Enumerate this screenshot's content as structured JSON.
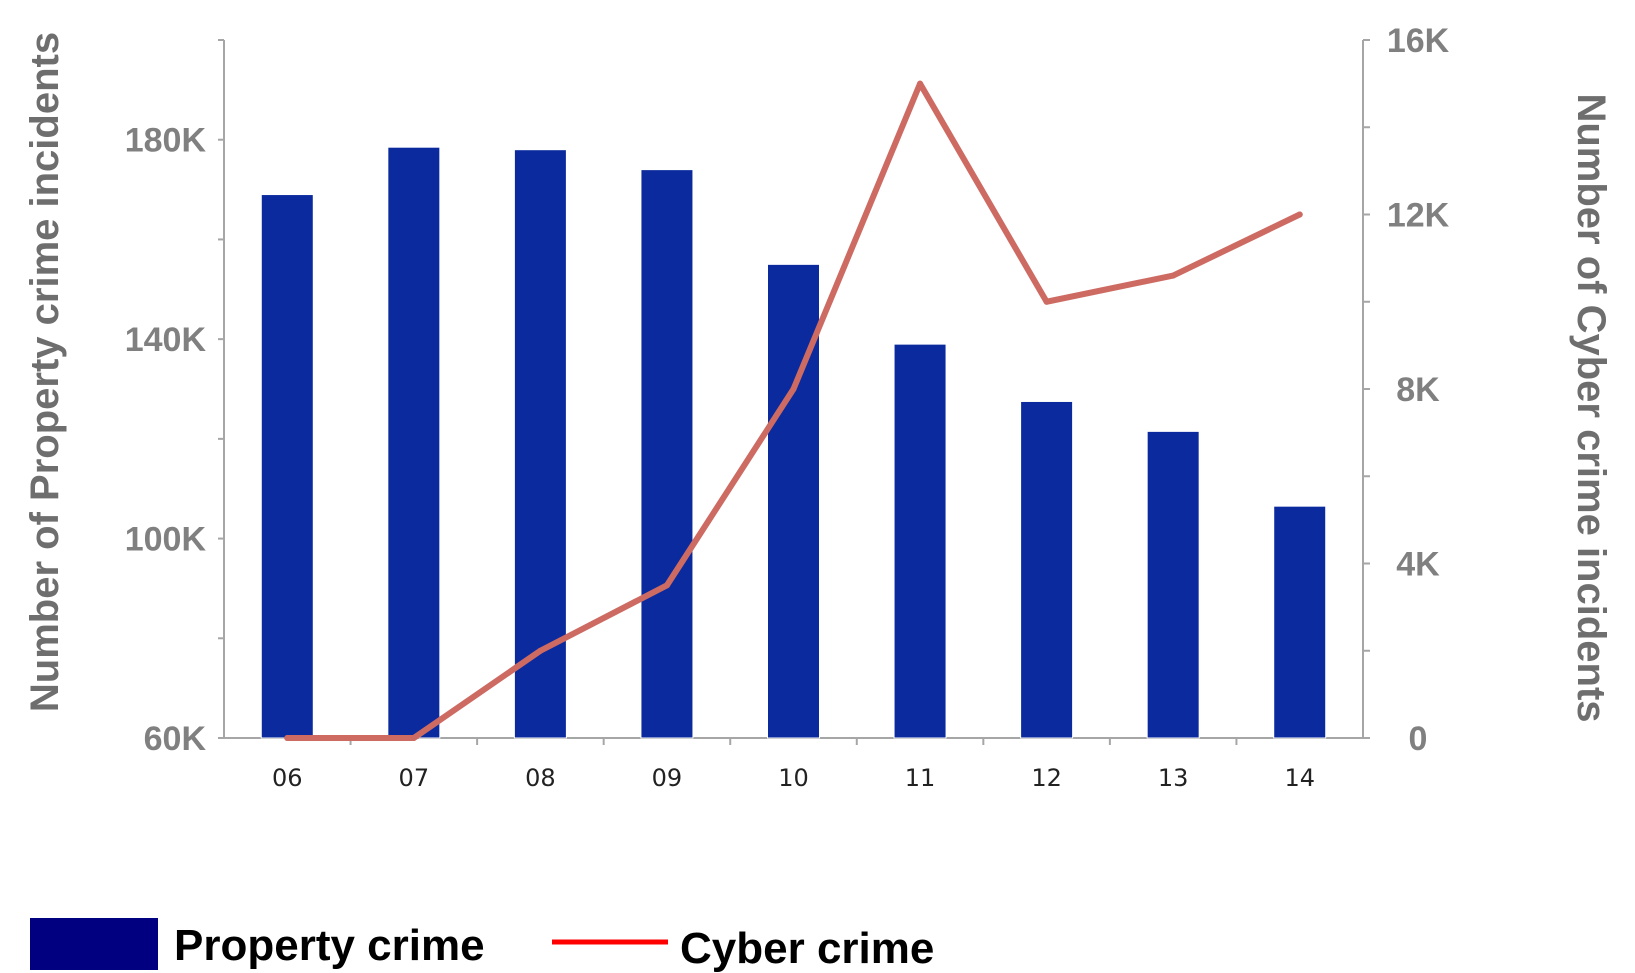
{
  "chart_data": {
    "type": "bar",
    "categories": [
      "06",
      "07",
      "08",
      "09",
      "10",
      "11",
      "12",
      "13",
      "14"
    ],
    "series": [
      {
        "name": "Property crime",
        "type": "bar",
        "axis": "left",
        "color": "#0a2a9e",
        "values": [
          169000,
          178500,
          178000,
          174000,
          155000,
          139000,
          127500,
          121500,
          106500
        ]
      },
      {
        "name": "Cyber crime",
        "type": "line",
        "axis": "right",
        "color": "#cd6b63",
        "values": [
          0,
          0,
          2000,
          3500,
          8000,
          15000,
          10000,
          10600,
          12000
        ]
      }
    ],
    "ylabel": "Number of Property crime incidents",
    "y2label": "Number of Cyber crime incidents",
    "ylim": [
      60000,
      200000
    ],
    "y2lim": [
      0,
      16000
    ],
    "yticks": [
      {
        "value": 60000,
        "label": "60K"
      },
      {
        "value": 100000,
        "label": "100K"
      },
      {
        "value": 140000,
        "label": "140K"
      },
      {
        "value": 180000,
        "label": "180K"
      }
    ],
    "y2ticks": [
      {
        "value": 0,
        "label": "0"
      },
      {
        "value": 4000,
        "label": "4K"
      },
      {
        "value": 8000,
        "label": "8K"
      },
      {
        "value": 12000,
        "label": "12K"
      },
      {
        "value": 16000,
        "label": "16K"
      }
    ],
    "legend_position": "bottom-left",
    "legend": [
      {
        "label": "Property crime",
        "color": "#000080",
        "kind": "box"
      },
      {
        "label": "Cyber crime",
        "color": "#ff0000",
        "kind": "line"
      }
    ],
    "grid": false
  }
}
